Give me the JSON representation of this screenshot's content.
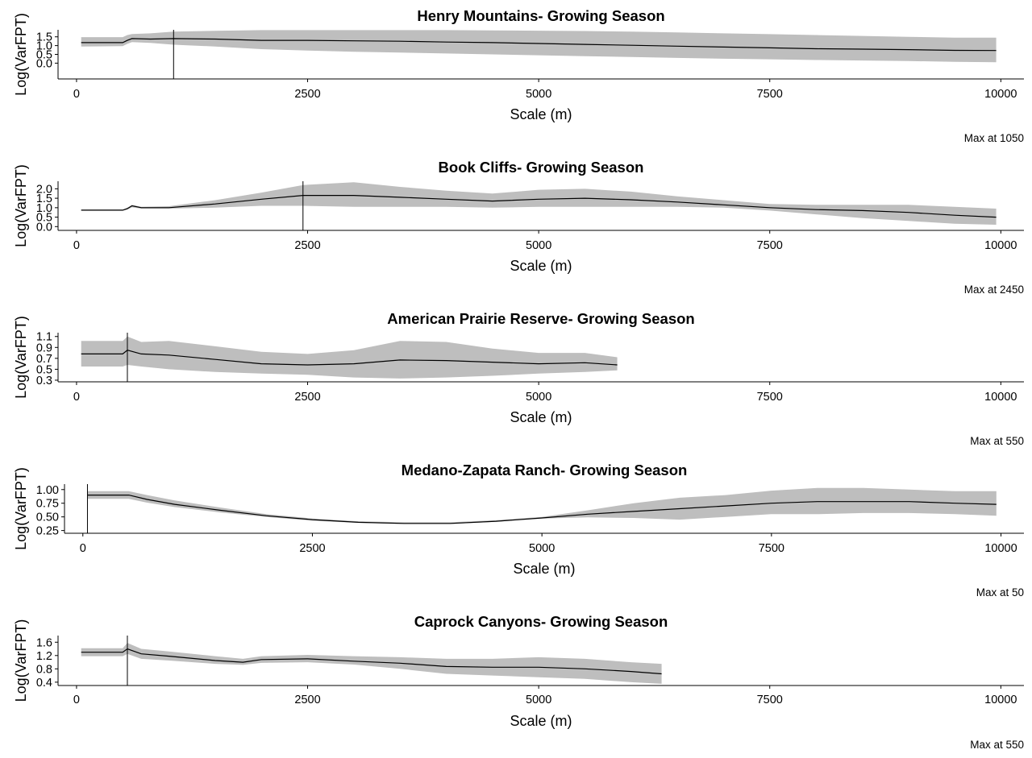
{
  "chart_data": [
    {
      "type": "line",
      "title": "Henry Mountains- Growing Season",
      "xlabel": "Scale (m)",
      "ylabel": "Log(VarFPT)",
      "caption": "Max at 1050",
      "max_at": 1050,
      "xlim": [
        -200,
        10250
      ],
      "ylim": [
        -0.9,
        1.9
      ],
      "x_ticks": [
        0,
        2500,
        5000,
        7500,
        10000
      ],
      "y_ticks": [
        0.0,
        0.5,
        1.0,
        1.5
      ],
      "y_tick_labels": [
        "0.0",
        "0.5",
        "1.0",
        "1.5"
      ],
      "grid": false,
      "series": [
        {
          "x": [
            50,
            500,
            550,
            600,
            800,
            1050,
            1500,
            2000,
            2500,
            3000,
            3500,
            4000,
            4500,
            5000,
            5500,
            6000,
            6500,
            7000,
            7500,
            8000,
            8500,
            9000,
            9500,
            9950
          ],
          "y": [
            1.17,
            1.17,
            1.3,
            1.4,
            1.37,
            1.4,
            1.37,
            1.3,
            1.3,
            1.27,
            1.25,
            1.2,
            1.17,
            1.12,
            1.07,
            1.02,
            0.97,
            0.92,
            0.87,
            0.82,
            0.8,
            0.77,
            0.73,
            0.72
          ],
          "lower": [
            0.95,
            0.97,
            1.1,
            1.2,
            1.15,
            1.05,
            0.95,
            0.8,
            0.72,
            0.65,
            0.6,
            0.55,
            0.5,
            0.45,
            0.4,
            0.35,
            0.3,
            0.25,
            0.22,
            0.18,
            0.15,
            0.12,
            0.08,
            0.05
          ],
          "upper": [
            1.48,
            1.48,
            1.6,
            1.66,
            1.7,
            1.8,
            1.84,
            1.88,
            1.88,
            1.88,
            1.88,
            1.88,
            1.87,
            1.85,
            1.83,
            1.8,
            1.75,
            1.7,
            1.65,
            1.6,
            1.55,
            1.5,
            1.45,
            1.45
          ]
        }
      ]
    },
    {
      "type": "line",
      "title": "Book Cliffs- Growing Season",
      "xlabel": "Scale (m)",
      "ylabel": "Log(VarFPT)",
      "caption": "Max at 2450",
      "max_at": 2450,
      "xlim": [
        -200,
        10250
      ],
      "ylim": [
        -0.2,
        2.4
      ],
      "x_ticks": [
        0,
        2500,
        5000,
        7500,
        10000
      ],
      "y_ticks": [
        0.0,
        0.5,
        1.0,
        1.5,
        2.0
      ],
      "y_tick_labels": [
        "0.0",
        "0.5",
        "1.0",
        "1.5",
        "2.0"
      ],
      "grid": false,
      "series": [
        {
          "x": [
            50,
            500,
            550,
            600,
            700,
            1000,
            1500,
            2000,
            2450,
            3000,
            3500,
            4000,
            4500,
            5000,
            5500,
            6000,
            6500,
            7000,
            7500,
            8000,
            8500,
            9000,
            9500,
            9950
          ],
          "y": [
            0.87,
            0.87,
            0.95,
            1.1,
            1.0,
            1.0,
            1.2,
            1.45,
            1.65,
            1.65,
            1.55,
            1.45,
            1.35,
            1.45,
            1.5,
            1.42,
            1.3,
            1.15,
            1.0,
            0.9,
            0.85,
            0.75,
            0.6,
            0.5
          ],
          "lower": [
            0.84,
            0.84,
            0.9,
            1.02,
            0.95,
            0.95,
            1.0,
            1.1,
            1.1,
            1.05,
            1.05,
            1.05,
            1.0,
            1.05,
            1.05,
            1.05,
            1.05,
            1.0,
            0.85,
            0.65,
            0.45,
            0.3,
            0.15,
            0.1
          ],
          "upper": [
            0.9,
            0.9,
            1.0,
            1.15,
            1.05,
            1.08,
            1.4,
            1.8,
            2.2,
            2.35,
            2.1,
            1.9,
            1.75,
            1.95,
            2.0,
            1.85,
            1.6,
            1.4,
            1.2,
            1.15,
            1.15,
            1.15,
            1.05,
            0.95
          ]
        }
      ]
    },
    {
      "type": "line",
      "title": "American Prairie Reserve- Growing Season",
      "xlabel": "Scale (m)",
      "ylabel": "Log(VarFPT)",
      "caption": "Max at 550",
      "max_at": 550,
      "xlim": [
        -200,
        10250
      ],
      "ylim": [
        0.27,
        1.17
      ],
      "x_ticks": [
        0,
        2500,
        5000,
        7500,
        10000
      ],
      "y_ticks": [
        0.3,
        0.5,
        0.7,
        0.9,
        1.1
      ],
      "y_tick_labels": [
        "0.3",
        "0.5",
        "0.7",
        "0.9",
        "1.1"
      ],
      "grid": false,
      "series": [
        {
          "x": [
            50,
            500,
            550,
            700,
            1000,
            1500,
            2000,
            2500,
            3000,
            3500,
            4000,
            4500,
            5000,
            5500,
            5850
          ],
          "y": [
            0.78,
            0.78,
            0.85,
            0.78,
            0.76,
            0.68,
            0.6,
            0.58,
            0.6,
            0.67,
            0.66,
            0.63,
            0.6,
            0.62,
            0.58
          ],
          "lower": [
            0.55,
            0.55,
            0.58,
            0.55,
            0.5,
            0.45,
            0.42,
            0.4,
            0.35,
            0.33,
            0.35,
            0.38,
            0.42,
            0.45,
            0.48
          ],
          "upper": [
            1.02,
            1.02,
            1.1,
            1.0,
            1.02,
            0.92,
            0.82,
            0.78,
            0.85,
            1.02,
            1.0,
            0.88,
            0.8,
            0.8,
            0.72
          ]
        }
      ]
    },
    {
      "type": "line",
      "title": "Medano-Zapata Ranch- Growing Season",
      "xlabel": "Scale (m)",
      "ylabel": "Log(VarFPT)",
      "caption": "Max at 50",
      "max_at": 50,
      "xlim": [
        -200,
        10250
      ],
      "ylim": [
        0.2,
        1.1
      ],
      "x_ticks": [
        0,
        2500,
        5000,
        7500,
        10000
      ],
      "y_ticks": [
        0.25,
        0.5,
        0.75,
        1.0
      ],
      "y_tick_labels": [
        "0.25",
        "0.50",
        "0.75",
        "1.00"
      ],
      "grid": false,
      "series": [
        {
          "x": [
            50,
            500,
            700,
            1000,
            1500,
            2000,
            2500,
            3000,
            3500,
            4000,
            4500,
            5000,
            5500,
            6000,
            6500,
            7000,
            7500,
            8000,
            8500,
            9000,
            9500,
            9950
          ],
          "y": [
            0.9,
            0.9,
            0.82,
            0.73,
            0.62,
            0.52,
            0.45,
            0.4,
            0.38,
            0.38,
            0.42,
            0.48,
            0.55,
            0.6,
            0.65,
            0.7,
            0.75,
            0.78,
            0.78,
            0.78,
            0.75,
            0.73
          ],
          "lower": [
            0.83,
            0.83,
            0.76,
            0.68,
            0.58,
            0.5,
            0.43,
            0.39,
            0.37,
            0.37,
            0.41,
            0.47,
            0.49,
            0.48,
            0.45,
            0.5,
            0.55,
            0.55,
            0.57,
            0.57,
            0.55,
            0.52
          ],
          "upper": [
            0.97,
            0.97,
            0.9,
            0.8,
            0.67,
            0.55,
            0.47,
            0.42,
            0.4,
            0.4,
            0.44,
            0.5,
            0.62,
            0.75,
            0.85,
            0.9,
            0.98,
            1.03,
            1.03,
            1.0,
            0.97,
            0.97
          ]
        }
      ]
    },
    {
      "type": "line",
      "title": "Caprock Canyons- Growing Season",
      "xlabel": "Scale (m)",
      "ylabel": "Log(VarFPT)",
      "caption": "Max at 550",
      "max_at": 550,
      "xlim": [
        -200,
        10250
      ],
      "ylim": [
        0.3,
        1.8
      ],
      "x_ticks": [
        0,
        2500,
        5000,
        7500,
        10000
      ],
      "y_ticks": [
        0.4,
        0.8,
        1.2,
        1.6
      ],
      "y_tick_labels": [
        "0.4",
        "0.8",
        "1.2",
        "1.6"
      ],
      "grid": false,
      "series": [
        {
          "x": [
            50,
            500,
            550,
            700,
            1000,
            1500,
            1800,
            2000,
            2500,
            3000,
            3500,
            4000,
            4500,
            5000,
            5500,
            6000,
            6330
          ],
          "y": [
            1.3,
            1.3,
            1.4,
            1.25,
            1.18,
            1.05,
            1.0,
            1.08,
            1.1,
            1.03,
            0.97,
            0.87,
            0.85,
            0.85,
            0.8,
            0.72,
            0.65
          ],
          "lower": [
            1.18,
            1.18,
            1.25,
            1.1,
            1.05,
            0.95,
            0.92,
            0.98,
            1.0,
            0.93,
            0.8,
            0.65,
            0.6,
            0.55,
            0.5,
            0.4,
            0.35
          ],
          "upper": [
            1.42,
            1.42,
            1.58,
            1.4,
            1.32,
            1.18,
            1.1,
            1.18,
            1.22,
            1.18,
            1.15,
            1.1,
            1.1,
            1.15,
            1.1,
            1.0,
            0.95
          ]
        }
      ]
    }
  ],
  "style": {
    "band_color": "#bebebe",
    "line_color": "#000000",
    "background": "#ffffff"
  }
}
